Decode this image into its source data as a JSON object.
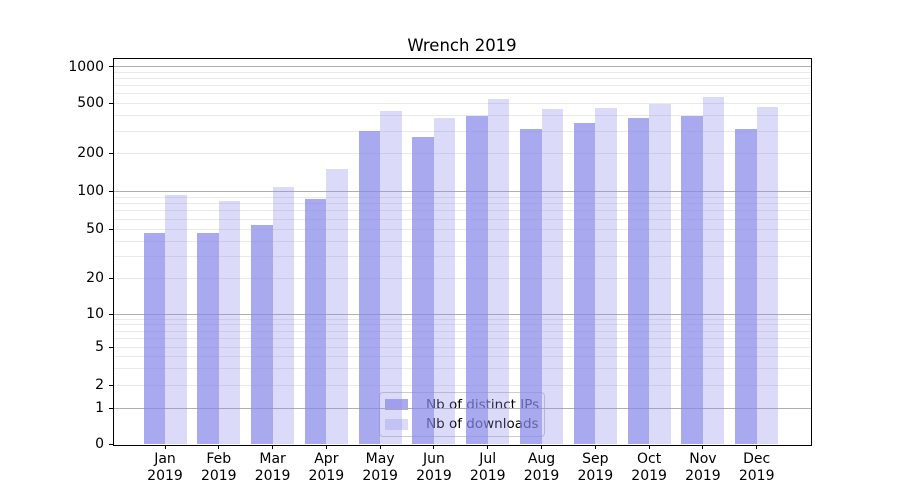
{
  "title": "Wrench 2019",
  "chart_data": {
    "type": "bar",
    "title": "Wrench 2019",
    "categories": [
      "Jan",
      "Feb",
      "Mar",
      "Apr",
      "May",
      "Jun",
      "Jul",
      "Aug",
      "Sep",
      "Oct",
      "Nov",
      "Dec"
    ],
    "year": "2019",
    "series": [
      {
        "name": "Nb of distinct IPs",
        "key": "distinct-ips",
        "color": "rgba(136,136,234,0.72)",
        "values": [
          47,
          47,
          54,
          87,
          300,
          270,
          397,
          311,
          347,
          384,
          399,
          314
        ]
      },
      {
        "name": "Nb of downloads",
        "key": "downloads",
        "color": "rgba(136,136,234,0.30)",
        "values": [
          93,
          84,
          108,
          150,
          436,
          384,
          545,
          450,
          458,
          497,
          563,
          467
        ]
      }
    ],
    "y_ticks": [
      0,
      1,
      2,
      5,
      10,
      20,
      50,
      100,
      200,
      500,
      1000
    ],
    "y_scale": "symlog",
    "ylim": [
      0,
      1150
    ],
    "xlabel": "",
    "ylabel": "",
    "grid": "both",
    "legend_position": "lower center",
    "colors": {
      "grid_major": "#b0b0b0",
      "grid_minor": "#e9e9e9",
      "axis": "#000000",
      "legend_border": "#cccccc"
    }
  }
}
